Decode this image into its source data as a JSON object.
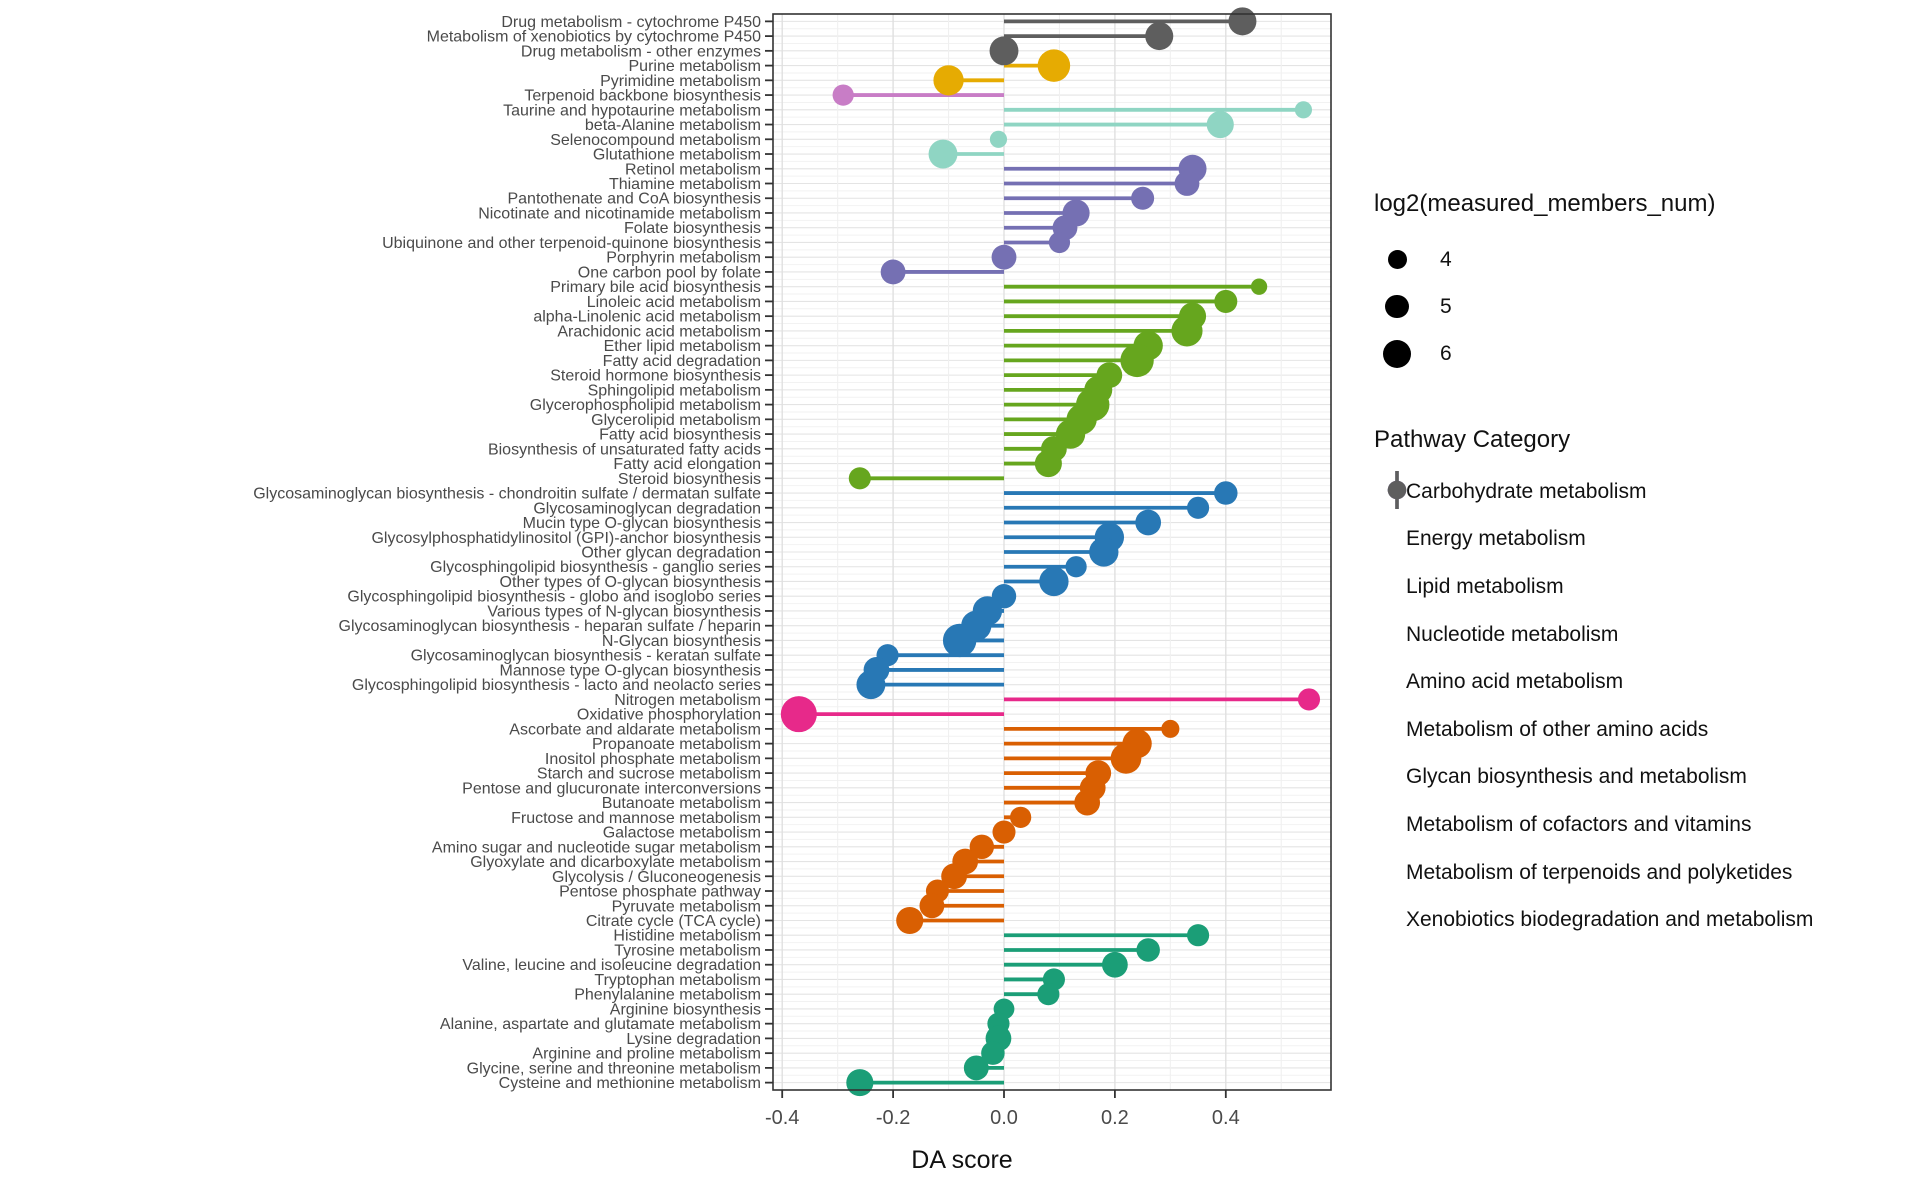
{
  "chart_data": {
    "type": "lollipop",
    "xlabel": "DA score",
    "x_ticks": [
      -0.4,
      -0.2,
      0.0,
      0.2,
      0.4
    ],
    "x_tick_labels": [
      "-0.4",
      "-0.2",
      "0.0",
      "0.2",
      "0.4"
    ],
    "x_minor_ticks": [
      -0.3,
      -0.1,
      0.1,
      0.3,
      0.5
    ],
    "x_range": [
      -0.417,
      0.59
    ],
    "grid": true,
    "size_legend": {
      "title": "log2(measured_members_num)",
      "values": [
        "4",
        "5",
        "6"
      ],
      "numeric": [
        4,
        5,
        6
      ]
    },
    "category_legend_title": "Pathway Category",
    "categories": [
      {
        "key": "carbohydrate",
        "label": "Carbohydrate metabolism",
        "color": "#D95F02"
      },
      {
        "key": "energy",
        "label": "Energy metabolism",
        "color": "#E7298A"
      },
      {
        "key": "lipid",
        "label": "Lipid metabolism",
        "color": "#66A61E"
      },
      {
        "key": "nucleotide",
        "label": "Nucleotide metabolism",
        "color": "#E6AB02"
      },
      {
        "key": "amino_acid",
        "label": "Amino acid metabolism",
        "color": "#1B9E77"
      },
      {
        "key": "other_amino",
        "label": "Metabolism of other amino acids",
        "color": "#8FD5C3"
      },
      {
        "key": "glycan",
        "label": "Glycan biosynthesis and metabolism",
        "color": "#2878B5"
      },
      {
        "key": "cofactors",
        "label": "Metabolism of cofactors and vitamins",
        "color": "#7570B3"
      },
      {
        "key": "terpenoids",
        "label": "Metabolism of terpenoids and polyketides",
        "color": "#C87DC6"
      },
      {
        "key": "xenobiotics",
        "label": "Xenobiotics biodegradation and metabolism",
        "color": "#5E5E5E"
      }
    ],
    "rows": [
      {
        "label": "Drug metabolism - cytochrome P450",
        "category": "xenobiotics",
        "da_score": 0.43,
        "log2_members": 6.0
      },
      {
        "label": "Metabolism of xenobiotics by cytochrome P450",
        "category": "xenobiotics",
        "da_score": 0.28,
        "log2_members": 6.0
      },
      {
        "label": "Drug metabolism - other enzymes",
        "category": "xenobiotics",
        "da_score": 0.0,
        "log2_members": 6.2
      },
      {
        "label": "Purine metabolism",
        "category": "nucleotide",
        "da_score": 0.09,
        "log2_members": 7.0
      },
      {
        "label": "Pyrimidine metabolism",
        "category": "nucleotide",
        "da_score": -0.1,
        "log2_members": 6.5
      },
      {
        "label": "Terpenoid backbone biosynthesis",
        "category": "terpenoids",
        "da_score": -0.29,
        "log2_members": 4.5
      },
      {
        "label": "Taurine and hypotaurine metabolism",
        "category": "other_amino",
        "da_score": 0.54,
        "log2_members": 3.6
      },
      {
        "label": "beta-Alanine metabolism",
        "category": "other_amino",
        "da_score": 0.39,
        "log2_members": 5.8
      },
      {
        "label": "Selenocompound metabolism",
        "category": "other_amino",
        "da_score": -0.01,
        "log2_members": 3.6
      },
      {
        "label": "Glutathione metabolism",
        "category": "other_amino",
        "da_score": -0.11,
        "log2_members": 6.2
      },
      {
        "label": "Retinol metabolism",
        "category": "cofactors",
        "da_score": 0.34,
        "log2_members": 6.0
      },
      {
        "label": "Thiamine metabolism",
        "category": "cofactors",
        "da_score": 0.33,
        "log2_members": 5.3
      },
      {
        "label": "Pantothenate and CoA biosynthesis",
        "category": "cofactors",
        "da_score": 0.25,
        "log2_members": 4.9
      },
      {
        "label": "Nicotinate and nicotinamide metabolism",
        "category": "cofactors",
        "da_score": 0.13,
        "log2_members": 5.8
      },
      {
        "label": "Folate biosynthesis",
        "category": "cofactors",
        "da_score": 0.11,
        "log2_members": 5.3
      },
      {
        "label": "Ubiquinone and other terpenoid-quinone biosynthesis",
        "category": "cofactors",
        "da_score": 0.1,
        "log2_members": 4.5
      },
      {
        "label": "Porphyrin metabolism",
        "category": "cofactors",
        "da_score": 0.0,
        "log2_members": 5.3
      },
      {
        "label": "One carbon pool by folate",
        "category": "cofactors",
        "da_score": -0.2,
        "log2_members": 5.3
      },
      {
        "label": "Primary bile acid biosynthesis",
        "category": "lipid",
        "da_score": 0.46,
        "log2_members": 3.4
      },
      {
        "label": "Linoleic acid metabolism",
        "category": "lipid",
        "da_score": 0.4,
        "log2_members": 4.9
      },
      {
        "label": "alpha-Linolenic acid metabolism",
        "category": "lipid",
        "da_score": 0.34,
        "log2_members": 5.8
      },
      {
        "label": "Arachidonic acid metabolism",
        "category": "lipid",
        "da_score": 0.33,
        "log2_members": 6.7
      },
      {
        "label": "Ether lipid metabolism",
        "category": "lipid",
        "da_score": 0.26,
        "log2_members": 6.3
      },
      {
        "label": "Fatty acid degradation",
        "category": "lipid",
        "da_score": 0.24,
        "log2_members": 7.2
      },
      {
        "label": "Steroid hormone biosynthesis",
        "category": "lipid",
        "da_score": 0.19,
        "log2_members": 5.5
      },
      {
        "label": "Sphingolipid metabolism",
        "category": "lipid",
        "da_score": 0.17,
        "log2_members": 6.0
      },
      {
        "label": "Glycerophospholipid metabolism",
        "category": "lipid",
        "da_score": 0.16,
        "log2_members": 7.2
      },
      {
        "label": "Glycerolipid metabolism",
        "category": "lipid",
        "da_score": 0.14,
        "log2_members": 6.5
      },
      {
        "label": "Fatty acid biosynthesis",
        "category": "lipid",
        "da_score": 0.12,
        "log2_members": 6.3
      },
      {
        "label": "Biosynthesis of unsaturated fatty acids",
        "category": "lipid",
        "da_score": 0.09,
        "log2_members": 5.5
      },
      {
        "label": "Fatty acid elongation",
        "category": "lipid",
        "da_score": 0.08,
        "log2_members": 5.8
      },
      {
        "label": "Steroid biosynthesis",
        "category": "lipid",
        "da_score": -0.26,
        "log2_members": 4.7
      },
      {
        "label": "Glycosaminoglycan biosynthesis - chondroitin sulfate / dermatan sulfate",
        "category": "glycan",
        "da_score": 0.4,
        "log2_members": 5.0
      },
      {
        "label": "Glycosaminoglycan degradation",
        "category": "glycan",
        "da_score": 0.35,
        "log2_members": 4.7
      },
      {
        "label": "Mucin type O-glycan biosynthesis",
        "category": "glycan",
        "da_score": 0.26,
        "log2_members": 5.5
      },
      {
        "label": "Glycosylphosphatidylinositol (GPI)-anchor biosynthesis",
        "category": "glycan",
        "da_score": 0.19,
        "log2_members": 6.3
      },
      {
        "label": "Other glycan degradation",
        "category": "glycan",
        "da_score": 0.18,
        "log2_members": 6.3
      },
      {
        "label": "Glycosphingolipid biosynthesis - ganglio series",
        "category": "glycan",
        "da_score": 0.13,
        "log2_members": 4.5
      },
      {
        "label": "Other types of O-glycan biosynthesis",
        "category": "glycan",
        "da_score": 0.09,
        "log2_members": 6.3
      },
      {
        "label": "Glycosphingolipid biosynthesis - globo and isoglobo series",
        "category": "glycan",
        "da_score": 0.0,
        "log2_members": 5.2
      },
      {
        "label": "Various types of N-glycan biosynthesis",
        "category": "glycan",
        "da_score": -0.03,
        "log2_members": 6.3
      },
      {
        "label": "Glycosaminoglycan biosynthesis - heparan sulfate / heparin",
        "category": "glycan",
        "da_score": -0.05,
        "log2_members": 6.5
      },
      {
        "label": "N-Glycan biosynthesis",
        "category": "glycan",
        "da_score": -0.08,
        "log2_members": 7.2
      },
      {
        "label": "Glycosaminoglycan biosynthesis - keratan sulfate",
        "category": "glycan",
        "da_score": -0.21,
        "log2_members": 4.7
      },
      {
        "label": "Mannose type O-glycan biosynthesis",
        "category": "glycan",
        "da_score": -0.23,
        "log2_members": 5.5
      },
      {
        "label": "Glycosphingolipid biosynthesis - lacto and neolacto series",
        "category": "glycan",
        "da_score": -0.24,
        "log2_members": 6.2
      },
      {
        "label": "Nitrogen metabolism",
        "category": "energy",
        "da_score": 0.55,
        "log2_members": 4.7
      },
      {
        "label": "Oxidative phosphorylation",
        "category": "energy",
        "da_score": -0.37,
        "log2_members": 7.8
      },
      {
        "label": "Ascorbate and aldarate metabolism",
        "category": "carbohydrate",
        "da_score": 0.3,
        "log2_members": 3.8
      },
      {
        "label": "Propanoate metabolism",
        "category": "carbohydrate",
        "da_score": 0.24,
        "log2_members": 6.3
      },
      {
        "label": "Inositol phosphate metabolism",
        "category": "carbohydrate",
        "da_score": 0.22,
        "log2_members": 6.6
      },
      {
        "label": "Starch and sucrose metabolism",
        "category": "carbohydrate",
        "da_score": 0.17,
        "log2_members": 5.5
      },
      {
        "label": "Pentose and glucuronate interconversions",
        "category": "carbohydrate",
        "da_score": 0.16,
        "log2_members": 5.5
      },
      {
        "label": "Butanoate metabolism",
        "category": "carbohydrate",
        "da_score": 0.15,
        "log2_members": 5.5
      },
      {
        "label": "Fructose and mannose metabolism",
        "category": "carbohydrate",
        "da_score": 0.03,
        "log2_members": 4.5
      },
      {
        "label": "Galactose metabolism",
        "category": "carbohydrate",
        "da_score": 0.0,
        "log2_members": 4.9
      },
      {
        "label": "Amino sugar and nucleotide sugar metabolism",
        "category": "carbohydrate",
        "da_score": -0.04,
        "log2_members": 5.2
      },
      {
        "label": "Glyoxylate and dicarboxylate metabolism",
        "category": "carbohydrate",
        "da_score": -0.07,
        "log2_members": 5.5
      },
      {
        "label": "Glycolysis / Gluconeogenesis",
        "category": "carbohydrate",
        "da_score": -0.09,
        "log2_members": 5.5
      },
      {
        "label": "Pentose phosphate pathway",
        "category": "carbohydrate",
        "da_score": -0.12,
        "log2_members": 4.9
      },
      {
        "label": "Pyruvate metabolism",
        "category": "carbohydrate",
        "da_score": -0.13,
        "log2_members": 5.3
      },
      {
        "label": "Citrate cycle (TCA cycle)",
        "category": "carbohydrate",
        "da_score": -0.17,
        "log2_members": 5.8
      },
      {
        "label": "Histidine metabolism",
        "category": "amino_acid",
        "da_score": 0.35,
        "log2_members": 4.7
      },
      {
        "label": "Tyrosine metabolism",
        "category": "amino_acid",
        "da_score": 0.26,
        "log2_members": 5.0
      },
      {
        "label": "Valine, leucine and isoleucine degradation",
        "category": "amino_acid",
        "da_score": 0.2,
        "log2_members": 5.5
      },
      {
        "label": "Tryptophan metabolism",
        "category": "amino_acid",
        "da_score": 0.09,
        "log2_members": 4.7
      },
      {
        "label": "Phenylalanine metabolism",
        "category": "amino_acid",
        "da_score": 0.08,
        "log2_members": 4.7
      },
      {
        "label": "Arginine biosynthesis",
        "category": "amino_acid",
        "da_score": 0.0,
        "log2_members": 4.4
      },
      {
        "label": "Alanine, aspartate and glutamate metabolism",
        "category": "amino_acid",
        "da_score": -0.01,
        "log2_members": 4.7
      },
      {
        "label": "Lysine degradation",
        "category": "amino_acid",
        "da_score": -0.01,
        "log2_members": 5.5
      },
      {
        "label": "Arginine and proline metabolism",
        "category": "amino_acid",
        "da_score": -0.02,
        "log2_members": 5.0
      },
      {
        "label": "Glycine, serine and threonine metabolism",
        "category": "amino_acid",
        "da_score": -0.05,
        "log2_members": 5.3
      },
      {
        "label": "Cysteine and methionine metabolism",
        "category": "amino_acid",
        "da_score": -0.26,
        "log2_members": 5.8
      }
    ]
  }
}
